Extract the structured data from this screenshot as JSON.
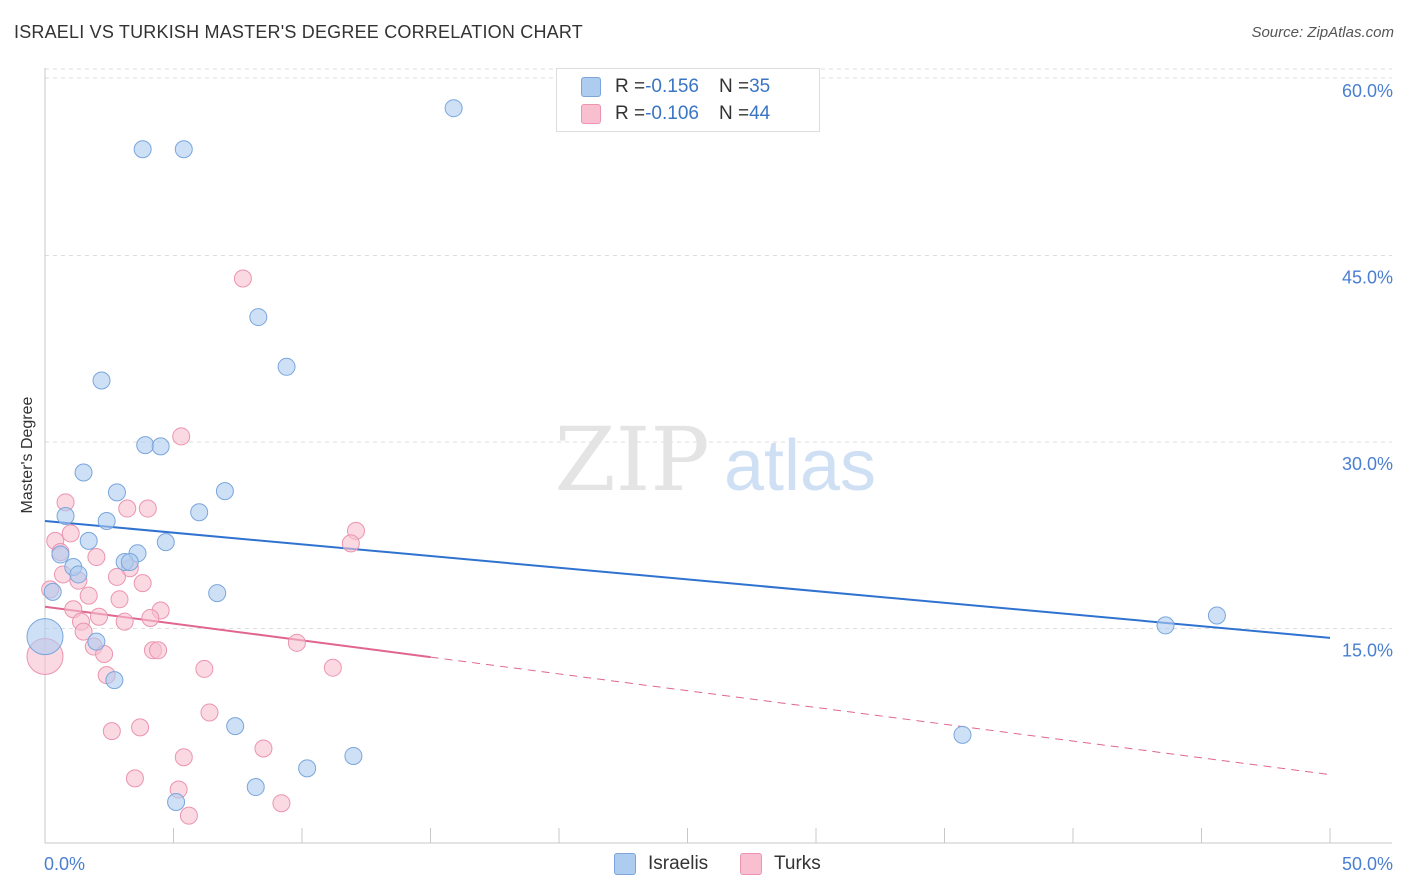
{
  "title": "ISRAELI VS TURKISH MASTER'S DEGREE CORRELATION CHART",
  "source": "Source: ZipAtlas.com",
  "watermark": {
    "zip": "ZIP",
    "atlas": "atlas"
  },
  "colors": {
    "blue_fill": "#aecbf0",
    "blue_stroke": "#7aa6dc",
    "blue_line": "#2f72d0",
    "pink_fill": "#f7bfd0",
    "pink_stroke": "#ec94b0",
    "pink_line": "#e06690",
    "axis_text": "#4a7fd0",
    "grid": "#dddddd"
  },
  "legend": {
    "rows": [
      {
        "r_label": "R = ",
        "r_value": "-0.156",
        "n_label": "N = ",
        "n_value": "35"
      },
      {
        "r_label": "R = ",
        "r_value": "-0.106",
        "n_label": "N = ",
        "n_value": "44"
      }
    ]
  },
  "bottom_legend": {
    "israelis": "Israelis",
    "turks": "Turks"
  },
  "chart_data": {
    "type": "scatter",
    "title": "ISRAELI VS TURKISH MASTER'S DEGREE CORRELATION CHART",
    "xlabel": "",
    "ylabel": "Master's Degree",
    "xlim": [
      0,
      50
    ],
    "ylim": [
      0,
      60
    ],
    "x_tick_labels": [
      "0.0%",
      "50.0%"
    ],
    "y_ticks": [
      15,
      30,
      45,
      60
    ],
    "y_tick_labels": [
      "15.0%",
      "30.0%",
      "45.0%",
      "60.0%"
    ],
    "grid": true,
    "series": [
      {
        "name": "Israelis",
        "r": -0.156,
        "n": 35,
        "trend": {
          "x0": 0,
          "y0": 25.9,
          "x1": 50,
          "y1": 16.5,
          "solid_until": 50
        },
        "points": [
          {
            "x": 15.9,
            "y": 59.1
          },
          {
            "x": 3.8,
            "y": 55.8
          },
          {
            "x": 5.4,
            "y": 55.8
          },
          {
            "x": 8.3,
            "y": 42.3
          },
          {
            "x": 9.4,
            "y": 38.3
          },
          {
            "x": 2.2,
            "y": 37.2
          },
          {
            "x": 3.9,
            "y": 32.0
          },
          {
            "x": 4.5,
            "y": 31.9
          },
          {
            "x": 1.5,
            "y": 29.8
          },
          {
            "x": 2.8,
            "y": 28.2
          },
          {
            "x": 7.0,
            "y": 28.3
          },
          {
            "x": 6.0,
            "y": 26.6
          },
          {
            "x": 0.8,
            "y": 26.3
          },
          {
            "x": 2.4,
            "y": 25.9
          },
          {
            "x": 1.7,
            "y": 24.3
          },
          {
            "x": 4.7,
            "y": 24.2
          },
          {
            "x": 0.6,
            "y": 23.2
          },
          {
            "x": 3.6,
            "y": 23.3
          },
          {
            "x": 3.1,
            "y": 22.6
          },
          {
            "x": 3.3,
            "y": 22.6
          },
          {
            "x": 1.1,
            "y": 22.2
          },
          {
            "x": 1.3,
            "y": 21.6
          },
          {
            "x": 0.3,
            "y": 20.2
          },
          {
            "x": 6.7,
            "y": 20.1
          },
          {
            "x": 0.0,
            "y": 16.6,
            "size": "large"
          },
          {
            "x": 2.0,
            "y": 16.2
          },
          {
            "x": 2.7,
            "y": 13.1
          },
          {
            "x": 45.6,
            "y": 18.3
          },
          {
            "x": 43.6,
            "y": 17.5
          },
          {
            "x": 7.4,
            "y": 9.4
          },
          {
            "x": 35.7,
            "y": 8.7
          },
          {
            "x": 12.0,
            "y": 7.0
          },
          {
            "x": 10.2,
            "y": 6.0
          },
          {
            "x": 8.2,
            "y": 4.5
          },
          {
            "x": 5.1,
            "y": 3.3
          }
        ]
      },
      {
        "name": "Turks",
        "r": -0.106,
        "n": 44,
        "trend": {
          "x0": 0,
          "y0": 19.0,
          "x1": 50,
          "y1": 5.5,
          "solid_until": 15
        },
        "points": [
          {
            "x": 7.7,
            "y": 45.4
          },
          {
            "x": 5.3,
            "y": 32.7
          },
          {
            "x": 0.8,
            "y": 27.4
          },
          {
            "x": 3.2,
            "y": 26.9
          },
          {
            "x": 4.0,
            "y": 26.9
          },
          {
            "x": 1.0,
            "y": 24.9
          },
          {
            "x": 0.4,
            "y": 24.3
          },
          {
            "x": 12.1,
            "y": 25.1
          },
          {
            "x": 11.9,
            "y": 24.1
          },
          {
            "x": 0.6,
            "y": 23.4
          },
          {
            "x": 2.0,
            "y": 23.0
          },
          {
            "x": 3.3,
            "y": 22.1
          },
          {
            "x": 0.7,
            "y": 21.6
          },
          {
            "x": 2.8,
            "y": 21.4
          },
          {
            "x": 1.3,
            "y": 21.1
          },
          {
            "x": 3.8,
            "y": 20.9
          },
          {
            "x": 0.2,
            "y": 20.4
          },
          {
            "x": 1.7,
            "y": 19.9
          },
          {
            "x": 2.9,
            "y": 19.6
          },
          {
            "x": 1.1,
            "y": 18.8
          },
          {
            "x": 4.5,
            "y": 18.7
          },
          {
            "x": 2.1,
            "y": 18.2
          },
          {
            "x": 4.1,
            "y": 18.1
          },
          {
            "x": 1.4,
            "y": 17.8
          },
          {
            "x": 3.1,
            "y": 17.8
          },
          {
            "x": 1.5,
            "y": 17.0
          },
          {
            "x": 9.8,
            "y": 16.1
          },
          {
            "x": 1.9,
            "y": 15.8
          },
          {
            "x": 4.2,
            "y": 15.5
          },
          {
            "x": 4.4,
            "y": 15.5
          },
          {
            "x": 2.3,
            "y": 15.2
          },
          {
            "x": 0.0,
            "y": 15.0,
            "size": "large"
          },
          {
            "x": 6.2,
            "y": 14.0
          },
          {
            "x": 11.2,
            "y": 14.1
          },
          {
            "x": 2.4,
            "y": 13.5
          },
          {
            "x": 6.4,
            "y": 10.5
          },
          {
            "x": 3.7,
            "y": 9.3
          },
          {
            "x": 2.6,
            "y": 9.0
          },
          {
            "x": 8.5,
            "y": 7.6
          },
          {
            "x": 5.4,
            "y": 6.9
          },
          {
            "x": 3.5,
            "y": 5.2
          },
          {
            "x": 5.2,
            "y": 4.3
          },
          {
            "x": 9.2,
            "y": 3.2
          },
          {
            "x": 5.6,
            "y": 2.2
          }
        ]
      }
    ]
  }
}
